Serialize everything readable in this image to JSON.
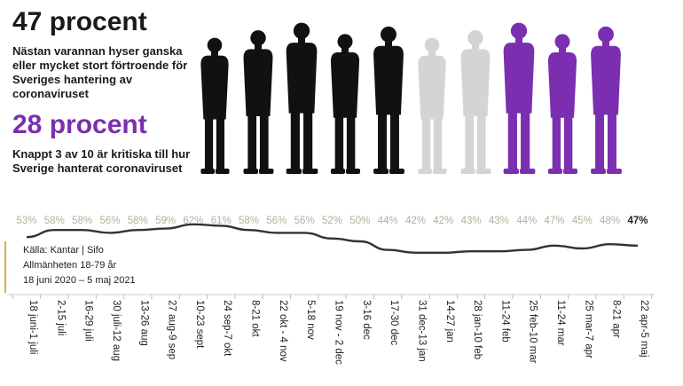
{
  "header": {
    "headline_1": "47 procent",
    "text_1": "Nästan varannan hyser ganska eller mycket stort förtroende för Sveriges hantering av coronaviruset",
    "headline_2": "28 procent",
    "text_2": "Knappt 3 av 10 är kritiska till hur Sverige hanterat coronaviruset"
  },
  "figures": {
    "total": 10,
    "black": 5,
    "grey": 2,
    "purple": 3,
    "colors": {
      "black": "#111111",
      "grey": "#d4d4d4",
      "purple": "#7b2fb0"
    }
  },
  "source": {
    "line_1": "Källa: Kantar | Sifo",
    "line_2": "Allmänheten 18-79 år",
    "line_3": "18 juni 2020 – 5 maj 2021"
  },
  "colors": {
    "line": "#333333",
    "label": "#b8ad9c",
    "last_label": "#222222",
    "accent_purple": "#7b2fb0",
    "source_bar": "#d6b33b"
  },
  "chart_data": {
    "type": "line",
    "title": "",
    "xlabel": "",
    "ylabel": "",
    "categories": [
      "18 juni-1 juli",
      "2-15 juli",
      "16-29 juli",
      "30 juli-12 aug",
      "13-26 aug",
      "27 aug-9 sep",
      "10-23 sept",
      "24 sep-7 okt",
      "8-21 okt",
      "22 okt - 4 nov",
      "5-18 nov",
      "19 nov - 2 dec",
      "3-16 dec",
      "17-30 dec",
      "31 dec-13 jan",
      "14-27 jan",
      "28 jan-10 feb",
      "11-24 feb",
      "25 feb-10 mar",
      "11-24 mar",
      "25 mar-7 apr",
      "8-21 apr",
      "22 apr-5 maj"
    ],
    "values": [
      53,
      58,
      58,
      56,
      58,
      59,
      62,
      61,
      58,
      56,
      56,
      52,
      50,
      44,
      42,
      42,
      43,
      43,
      44,
      47,
      45,
      48,
      47
    ],
    "labels": [
      "53%",
      "58%",
      "58%",
      "56%",
      "58%",
      "59%",
      "62%",
      "61%",
      "58%",
      "56%",
      "56%",
      "52%",
      "50%",
      "44%",
      "42%",
      "42%",
      "43%",
      "43%",
      "44%",
      "47%",
      "45%",
      "48%",
      "47%"
    ],
    "ylim": [
      30,
      75
    ],
    "grid": false,
    "legend": "none"
  }
}
